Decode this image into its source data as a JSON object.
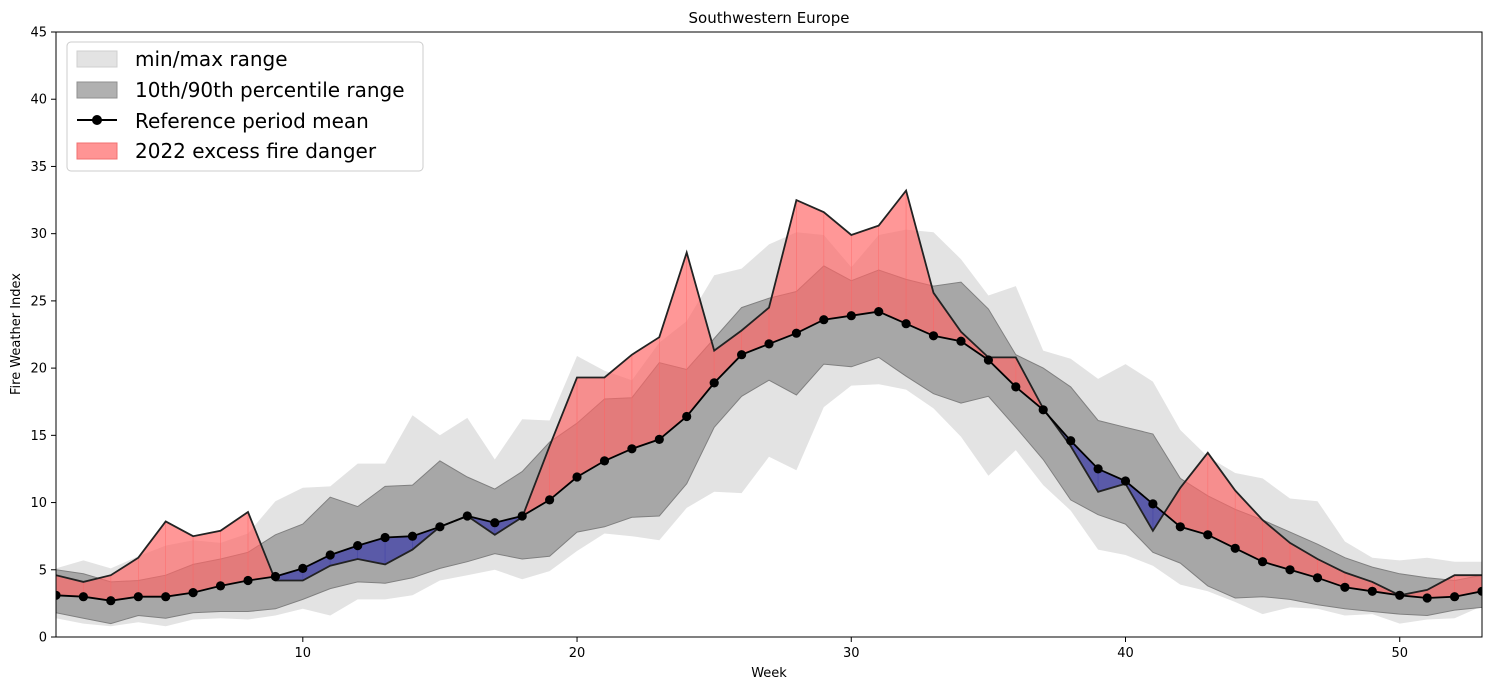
{
  "chart_data": {
    "type": "area",
    "title": "Southwestern Europe",
    "xlabel": "Week",
    "ylabel": "Fire Weather Index",
    "xlim": [
      1,
      53
    ],
    "ylim": [
      0,
      45
    ],
    "xticks": [
      10,
      20,
      30,
      40,
      50
    ],
    "yticks": [
      0,
      5,
      10,
      15,
      20,
      25,
      30,
      35,
      40,
      45
    ],
    "legend_position": "top-left",
    "grid": false,
    "x": [
      1,
      2,
      3,
      4,
      5,
      6,
      7,
      8,
      9,
      10,
      11,
      12,
      13,
      14,
      15,
      16,
      17,
      18,
      19,
      20,
      21,
      22,
      23,
      24,
      25,
      26,
      27,
      28,
      29,
      30,
      31,
      32,
      33,
      34,
      35,
      36,
      37,
      38,
      39,
      40,
      41,
      42,
      43,
      44,
      45,
      46,
      47,
      48,
      49,
      50,
      51,
      52,
      53
    ],
    "series": [
      {
        "name": "min/max range",
        "kind": "band",
        "color": "#e3e3e3",
        "lower": [
          1.4,
          1.0,
          0.8,
          1.1,
          0.8,
          1.3,
          1.4,
          1.3,
          1.6,
          2.1,
          1.6,
          2.8,
          2.8,
          3.1,
          4.2,
          4.6,
          5.0,
          4.3,
          4.9,
          6.4,
          7.7,
          7.5,
          7.2,
          9.6,
          10.8,
          10.7,
          13.4,
          12.4,
          17.1,
          18.7,
          18.8,
          18.4,
          17.0,
          14.9,
          12.0,
          13.9,
          11.3,
          9.4,
          6.5,
          6.1,
          5.3,
          3.9,
          3.4,
          2.6,
          1.7,
          2.2,
          2.1,
          1.6,
          1.7,
          1.0,
          1.3,
          1.4,
          2.3
        ],
        "upper": [
          5.1,
          5.7,
          5.1,
          6.0,
          6.8,
          7.2,
          7.0,
          7.7,
          10.1,
          11.1,
          11.2,
          12.9,
          12.9,
          16.5,
          15.0,
          16.3,
          13.2,
          16.2,
          16.1,
          20.9,
          19.8,
          19.1,
          21.9,
          23.5,
          26.9,
          27.4,
          29.2,
          30.1,
          29.9,
          27.5,
          29.9,
          30.3,
          30.1,
          28.1,
          25.4,
          26.1,
          21.3,
          20.7,
          19.2,
          20.3,
          19.0,
          15.4,
          13.4,
          12.2,
          11.8,
          10.3,
          10.1,
          7.1,
          5.9,
          5.7,
          5.9,
          5.6,
          5.6
        ]
      },
      {
        "name": "10th/90th percentile range",
        "kind": "band",
        "color": "#a0a0a0",
        "lower": [
          1.8,
          1.4,
          1.0,
          1.6,
          1.4,
          1.8,
          1.9,
          1.9,
          2.1,
          2.8,
          3.6,
          4.1,
          4.0,
          4.4,
          5.1,
          5.6,
          6.2,
          5.8,
          6.0,
          7.8,
          8.2,
          8.9,
          9.0,
          11.4,
          15.6,
          17.9,
          19.1,
          18.0,
          20.3,
          20.1,
          20.8,
          19.4,
          18.1,
          17.4,
          17.9,
          15.6,
          13.2,
          10.2,
          9.1,
          8.4,
          6.3,
          5.5,
          3.8,
          2.9,
          3.0,
          2.8,
          2.4,
          2.1,
          1.9,
          1.7,
          1.6,
          2.0,
          2.2
        ],
        "upper": [
          5.0,
          4.7,
          4.1,
          4.2,
          4.6,
          5.4,
          5.8,
          6.3,
          7.6,
          8.4,
          10.4,
          9.7,
          11.2,
          11.3,
          13.1,
          11.9,
          11.0,
          12.3,
          14.5,
          15.9,
          17.7,
          17.8,
          20.4,
          19.9,
          22.2,
          24.5,
          25.2,
          25.7,
          27.6,
          26.5,
          27.3,
          26.6,
          26.1,
          26.4,
          24.4,
          21.0,
          20.0,
          18.6,
          16.1,
          15.6,
          15.1,
          11.8,
          10.5,
          9.5,
          8.7,
          7.8,
          6.9,
          5.9,
          5.2,
          4.7,
          4.4,
          4.2,
          4.6
        ]
      },
      {
        "name": "Reference period mean",
        "kind": "line",
        "color": "#000000",
        "values": [
          3.1,
          3.0,
          2.7,
          3.0,
          3.0,
          3.3,
          3.8,
          4.2,
          4.5,
          5.1,
          6.1,
          6.8,
          7.4,
          7.5,
          8.2,
          9.0,
          8.5,
          9.0,
          10.2,
          11.9,
          13.1,
          14.0,
          14.7,
          16.4,
          18.9,
          21.0,
          21.8,
          22.6,
          23.6,
          23.9,
          24.2,
          23.3,
          22.4,
          22.0,
          20.6,
          18.6,
          16.9,
          14.6,
          12.5,
          11.6,
          9.9,
          8.2,
          7.6,
          6.6,
          5.6,
          5.0,
          4.4,
          3.7,
          3.4,
          3.1,
          2.9,
          3.0,
          3.4
        ]
      },
      {
        "name": "2022 excess fire danger",
        "kind": "fill_between",
        "above_color": "#ff6666",
        "below_color": "#4040a8",
        "values": [
          4.6,
          4.1,
          4.6,
          5.9,
          8.6,
          7.5,
          7.9,
          9.3,
          4.2,
          4.2,
          5.3,
          5.8,
          5.4,
          6.5,
          8.2,
          9.0,
          7.6,
          8.9,
          14.2,
          19.3,
          19.3,
          21.0,
          22.3,
          28.6,
          21.3,
          22.8,
          24.5,
          32.5,
          31.6,
          29.9,
          30.6,
          33.2,
          25.6,
          22.7,
          20.8,
          20.8,
          17.0,
          14.2,
          10.8,
          11.4,
          7.9,
          11.1,
          13.7,
          10.9,
          8.7,
          7.0,
          5.8,
          4.8,
          4.1,
          3.1,
          3.5,
          4.6,
          4.6
        ]
      }
    ]
  }
}
